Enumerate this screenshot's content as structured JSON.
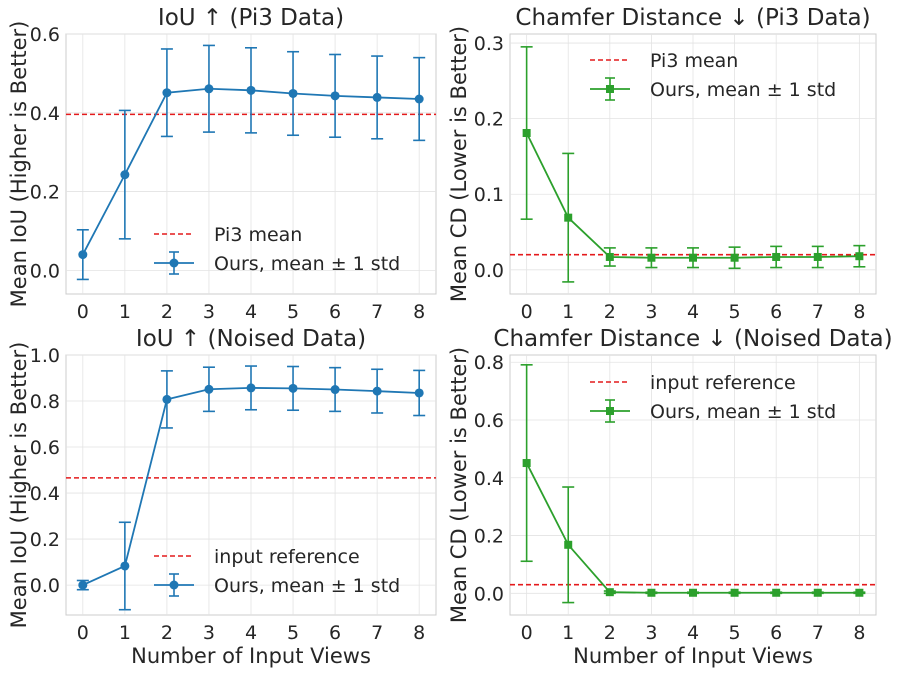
{
  "chart_data": [
    {
      "type": "line",
      "title": "IoU ↑  (Pi3 Data)",
      "xlabel": "",
      "ylabel": "Mean IoU (Higher is Better)",
      "x": [
        0,
        1,
        2,
        3,
        4,
        5,
        6,
        7,
        8
      ],
      "xlim": [
        -0.4,
        8.4
      ],
      "ylim": [
        -0.06,
        0.6
      ],
      "yticks": [
        0.0,
        0.2,
        0.4,
        0.6
      ],
      "ytick_labels": [
        "0.0",
        "0.2",
        "0.4",
        "0.6"
      ],
      "legend_position": "lower-right",
      "reference": {
        "name": "Pi3 mean",
        "value": 0.396,
        "color": "#e41a1c"
      },
      "series": [
        {
          "name": "Ours, mean ± 1 std",
          "marker": "circle",
          "color": "#1f77b4",
          "values": [
            0.04,
            0.243,
            0.451,
            0.461,
            0.457,
            0.449,
            0.443,
            0.439,
            0.435
          ],
          "std": [
            0.063,
            0.163,
            0.111,
            0.11,
            0.108,
            0.106,
            0.105,
            0.105,
            0.105
          ]
        }
      ]
    },
    {
      "type": "line",
      "title": "Chamfer Distance ↓  (Pi3 Data)",
      "xlabel": "",
      "ylabel": "Mean CD (Lower is Better)",
      "x": [
        0,
        1,
        2,
        3,
        4,
        5,
        6,
        7,
        8
      ],
      "xlim": [
        -0.4,
        8.4
      ],
      "ylim": [
        -0.032,
        0.312
      ],
      "yticks": [
        0.0,
        0.1,
        0.2,
        0.3
      ],
      "ytick_labels": [
        "0.0",
        "0.1",
        "0.2",
        "0.3"
      ],
      "legend_position": "top-right",
      "reference": {
        "name": "Pi3 mean",
        "value": 0.02,
        "color": "#e41a1c"
      },
      "series": [
        {
          "name": "Ours, mean ± 1 std",
          "marker": "square",
          "color": "#2ca02c",
          "values": [
            0.181,
            0.069,
            0.017,
            0.016,
            0.016,
            0.016,
            0.017,
            0.017,
            0.018
          ],
          "std": [
            0.114,
            0.085,
            0.012,
            0.013,
            0.013,
            0.014,
            0.014,
            0.014,
            0.014
          ]
        }
      ]
    },
    {
      "type": "line",
      "title": "IoU ↑  (Noised Data)",
      "xlabel": "Number of Input Views",
      "ylabel": "Mean IoU (Higher is Better)",
      "x": [
        0,
        1,
        2,
        3,
        4,
        5,
        6,
        7,
        8
      ],
      "xlim": [
        -0.4,
        8.4
      ],
      "ylim": [
        -0.13,
        1.0
      ],
      "yticks": [
        0.0,
        0.2,
        0.4,
        0.6,
        0.8,
        1.0
      ],
      "ytick_labels": [
        "0.0",
        "0.2",
        "0.4",
        "0.6",
        "0.8",
        "1.0"
      ],
      "legend_position": "lower-right",
      "reference": {
        "name": "input reference",
        "value": 0.466,
        "color": "#e41a1c"
      },
      "series": [
        {
          "name": "Ours, mean ± 1 std",
          "marker": "circle",
          "color": "#1f77b4",
          "values": [
            0.0,
            0.083,
            0.807,
            0.851,
            0.857,
            0.855,
            0.85,
            0.843,
            0.835
          ],
          "std": [
            0.02,
            0.19,
            0.124,
            0.096,
            0.095,
            0.095,
            0.095,
            0.095,
            0.098
          ]
        }
      ]
    },
    {
      "type": "line",
      "title": "Chamfer Distance ↓  (Noised Data)",
      "xlabel": "Number of Input Views",
      "ylabel": "Mean CD (Lower is Better)",
      "x": [
        0,
        1,
        2,
        3,
        4,
        5,
        6,
        7,
        8
      ],
      "xlim": [
        -0.4,
        8.4
      ],
      "ylim": [
        -0.075,
        0.825
      ],
      "yticks": [
        0.0,
        0.2,
        0.4,
        0.6,
        0.8
      ],
      "ytick_labels": [
        "0.0",
        "0.2",
        "0.4",
        "0.6",
        "0.8"
      ],
      "legend_position": "top-right",
      "reference": {
        "name": "input reference",
        "value": 0.03,
        "color": "#e41a1c"
      },
      "series": [
        {
          "name": "Ours, mean ± 1 std",
          "marker": "square",
          "color": "#2ca02c",
          "values": [
            0.451,
            0.168,
            0.004,
            0.002,
            0.002,
            0.002,
            0.002,
            0.002,
            0.002
          ],
          "std": [
            0.34,
            0.2,
            0.004,
            0.002,
            0.002,
            0.002,
            0.002,
            0.002,
            0.002
          ]
        }
      ]
    }
  ]
}
